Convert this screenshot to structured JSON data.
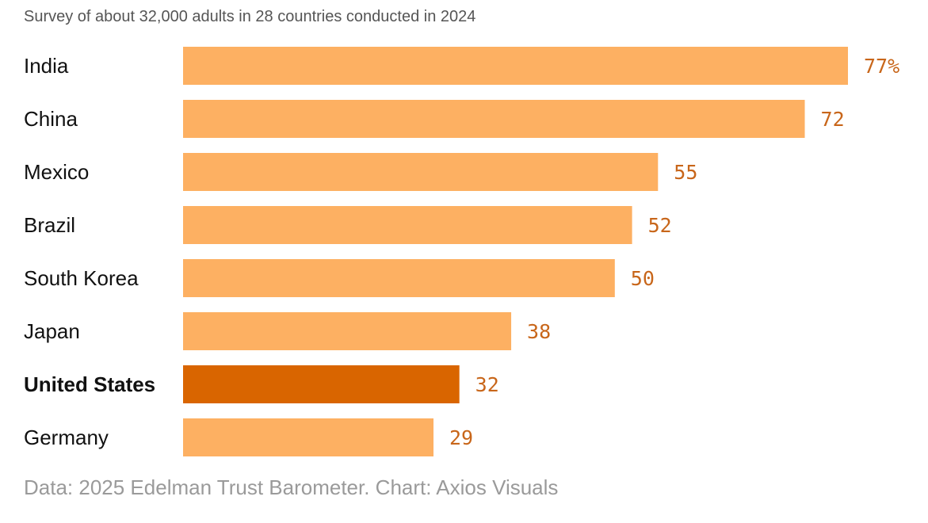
{
  "subtitle": "Survey of about 32,000 adults in 28 countries conducted in 2024",
  "source": "Data: 2025 Edelman Trust Barometer. Chart: Axios Visuals",
  "colors": {
    "bar": "#fdb062",
    "bar_highlight": "#d96500",
    "value_label": "#c8661a",
    "category_label": "#111111"
  },
  "chart_data": {
    "type": "bar",
    "orientation": "horizontal",
    "categories": [
      "India",
      "China",
      "Mexico",
      "Brazil",
      "South Korea",
      "Japan",
      "United States",
      "Germany"
    ],
    "values": [
      77,
      72,
      55,
      52,
      50,
      38,
      32,
      29
    ],
    "value_labels": [
      "77%",
      "72",
      "55",
      "52",
      "50",
      "38",
      "32",
      "29"
    ],
    "highlight": "United States",
    "xlim": [
      0,
      77
    ],
    "grid": false,
    "legend": "none"
  }
}
